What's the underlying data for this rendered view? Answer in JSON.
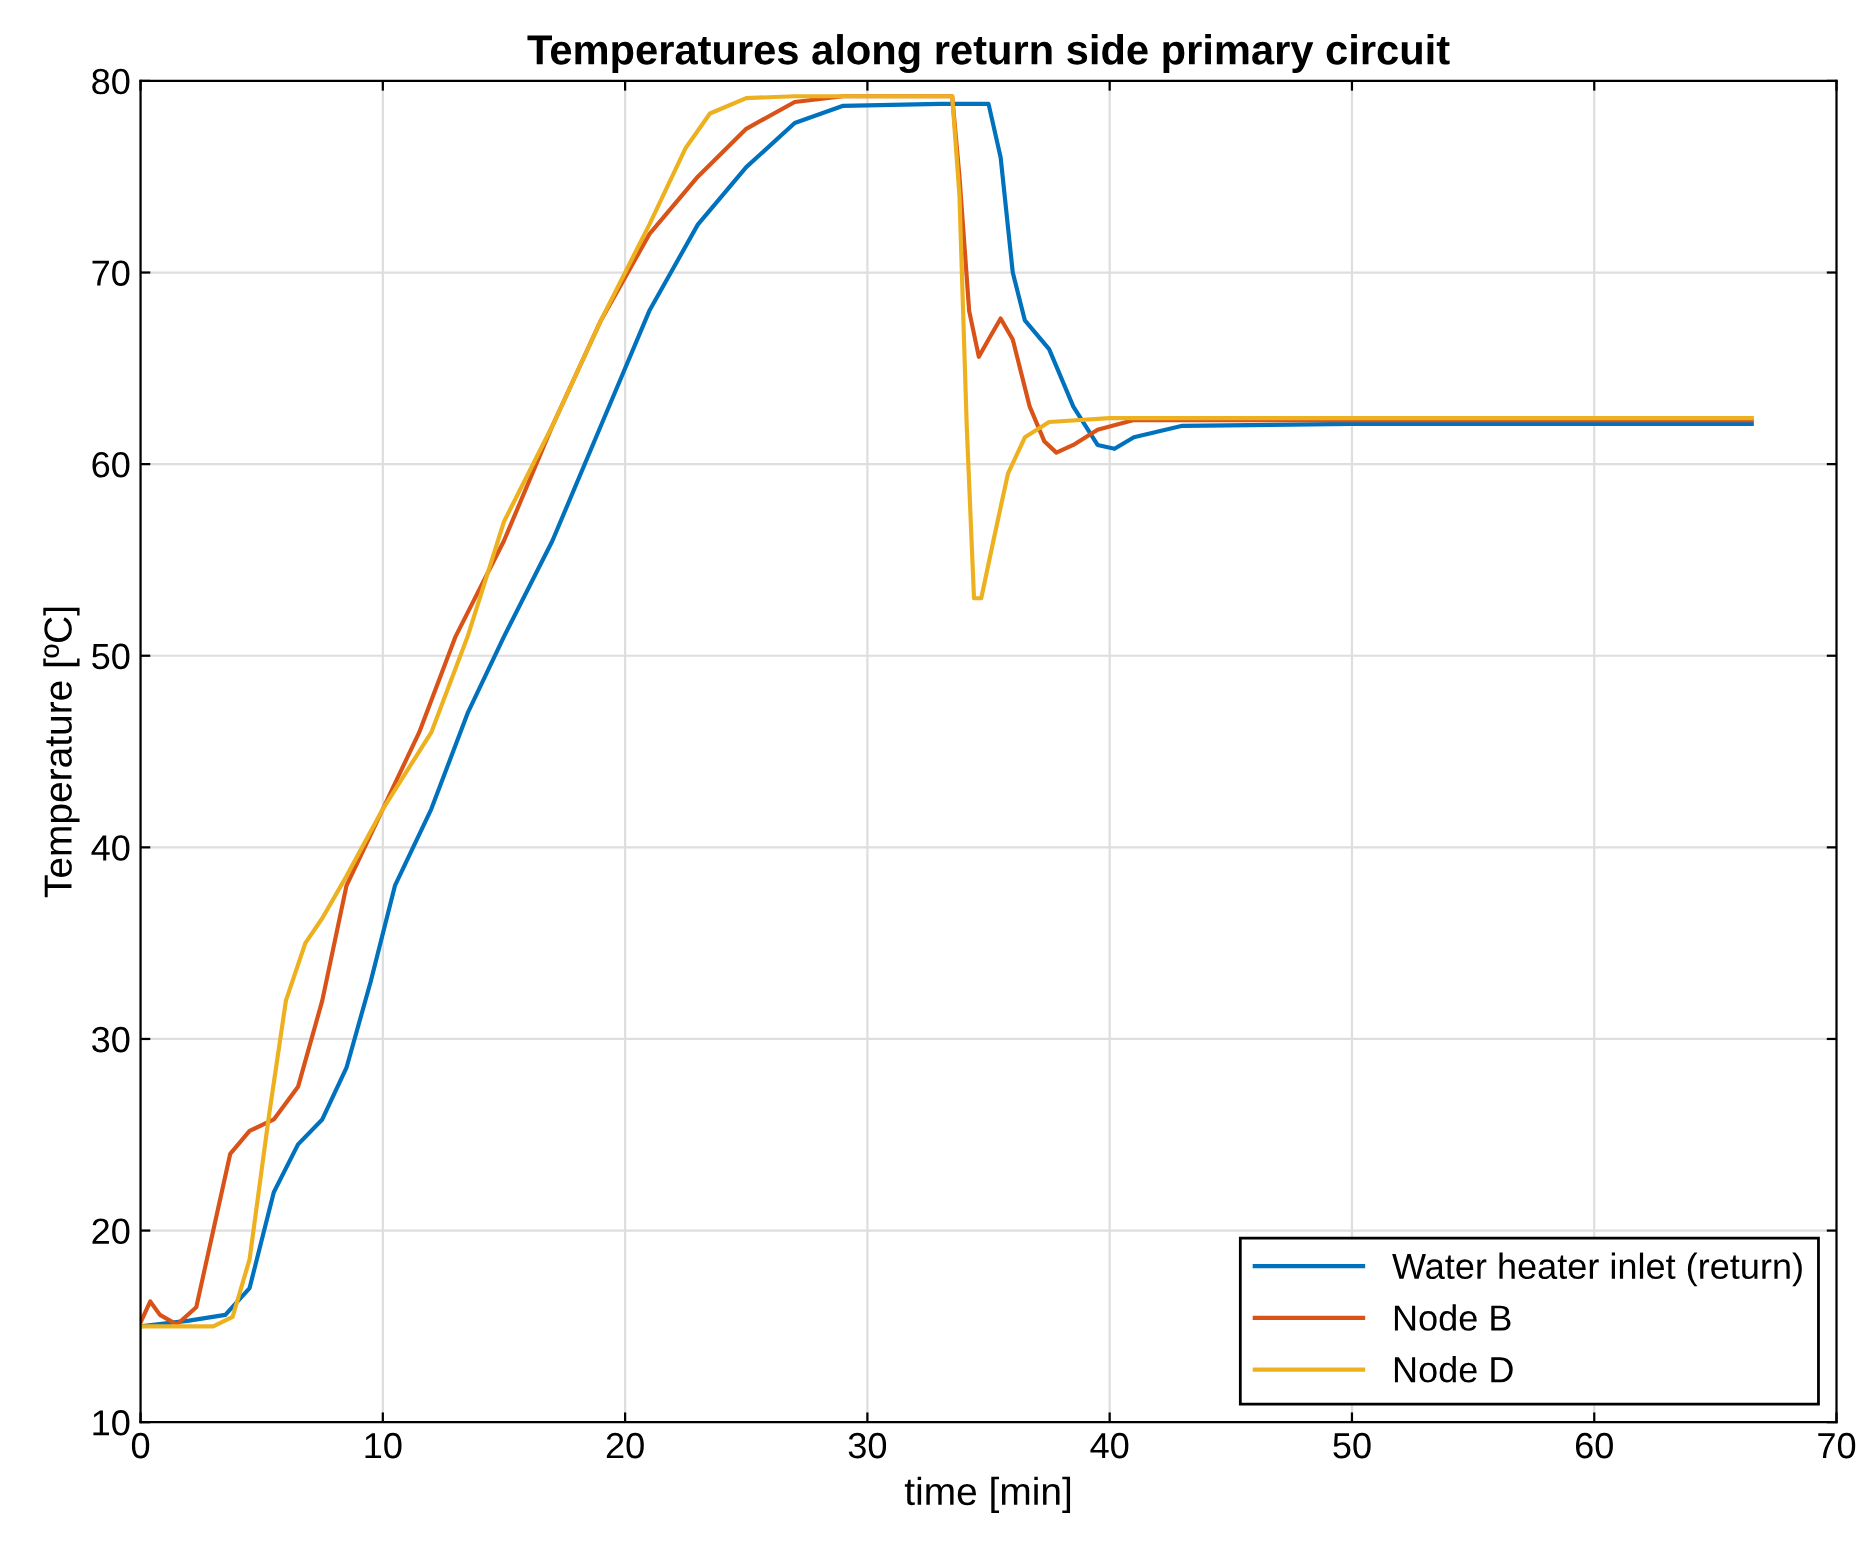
{
  "chart_data": {
    "type": "line",
    "title": "Temperatures along return side primary circuit",
    "xlabel": "time [min]",
    "ylabel": "Temperature [ºC]",
    "xlim": [
      0,
      70
    ],
    "ylim": [
      10,
      80
    ],
    "xticks": [
      0,
      10,
      20,
      30,
      40,
      50,
      60,
      70
    ],
    "yticks": [
      10,
      20,
      30,
      40,
      50,
      60,
      70,
      80
    ],
    "grid": true,
    "legend": "bottom right",
    "marker": "none",
    "line_style": "solid",
    "series": [
      {
        "name": "Water heater inlet (return)",
        "color": "#0072bd",
        "x": [
          0,
          2,
          3.5,
          4.5,
          5.5,
          6.5,
          7.5,
          8.5,
          9.5,
          10.5,
          12,
          13.5,
          15,
          17,
          19,
          21,
          23,
          25,
          27,
          29,
          33,
          35,
          35.5,
          36,
          36.5,
          37.5,
          38.5,
          39.5,
          40.2,
          41,
          43,
          50,
          66.5
        ],
        "values": [
          15,
          15.3,
          15.6,
          17,
          22,
          24.5,
          25.8,
          28.5,
          33,
          38,
          42,
          47,
          51,
          56,
          62,
          68,
          72.5,
          75.5,
          77.8,
          78.7,
          78.8,
          78.8,
          76,
          70,
          67.5,
          66,
          63,
          61,
          60.8,
          61.4,
          62,
          62.1,
          62.1
        ]
      },
      {
        "name": "Node B",
        "color": "#d95319",
        "x": [
          0,
          0.4,
          0.8,
          1.5,
          2.3,
          3,
          3.7,
          4.5,
          5.5,
          6.5,
          7.5,
          8.5,
          10,
          11.5,
          13,
          15,
          17,
          19,
          21,
          23,
          25,
          27,
          29,
          33.5,
          33.8,
          34.2,
          34.6,
          35,
          35.5,
          36,
          36.7,
          37.3,
          37.8,
          38.5,
          39.5,
          41,
          66.5
        ],
        "values": [
          15.2,
          16.3,
          15.6,
          15.1,
          16,
          20,
          24,
          25.2,
          25.8,
          27.5,
          32,
          38,
          42,
          46,
          51,
          56,
          62,
          67.5,
          72,
          75,
          77.5,
          78.9,
          79.2,
          79.2,
          75,
          68,
          65.6,
          66.5,
          67.6,
          66.5,
          63,
          61.2,
          60.6,
          61,
          61.8,
          62.3,
          62.3
        ]
      },
      {
        "name": "Node D",
        "color": "#edb120",
        "x": [
          0,
          3,
          3.8,
          4.5,
          5.3,
          6,
          6.8,
          7.5,
          8.5,
          10,
          12,
          13.5,
          15,
          17,
          19,
          21,
          22.5,
          23.5,
          25,
          27,
          33.5,
          33.8,
          34.1,
          34.4,
          34.7,
          35.2,
          35.8,
          36.5,
          37.5,
          40,
          66.5
        ],
        "values": [
          15,
          15,
          15.5,
          18.5,
          26,
          32,
          35,
          36.3,
          38.5,
          42,
          46,
          51,
          57,
          62,
          67.5,
          72.5,
          76.5,
          78.3,
          79.1,
          79.2,
          79.2,
          74,
          62,
          53,
          53,
          56,
          59.5,
          61.4,
          62.2,
          62.4,
          62.4
        ]
      }
    ]
  }
}
